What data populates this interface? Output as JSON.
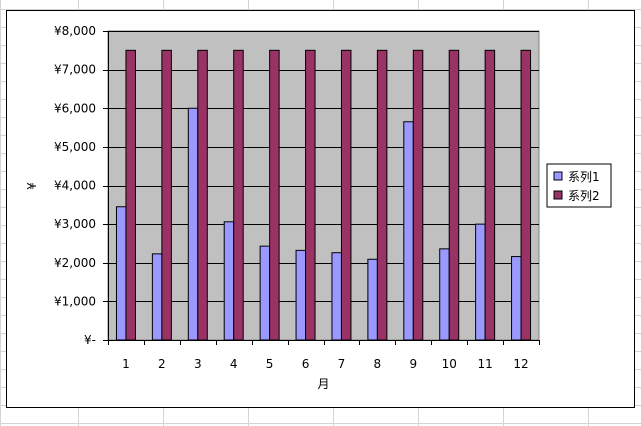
{
  "chart_data": {
    "type": "bar",
    "title": "",
    "xlabel": "月",
    "ylabel": "¥",
    "categories": [
      "1",
      "2",
      "3",
      "4",
      "5",
      "6",
      "7",
      "8",
      "9",
      "10",
      "11",
      "12"
    ],
    "series": [
      {
        "name": "系列1",
        "color": "#9999ff",
        "values": [
          3450,
          2230,
          6000,
          3060,
          2430,
          2320,
          2260,
          2090,
          5650,
          2360,
          3000,
          2160
        ]
      },
      {
        "name": "系列2",
        "color": "#993366",
        "values": [
          7500,
          7500,
          7500,
          7500,
          7500,
          7500,
          7500,
          7500,
          7500,
          7500,
          7500,
          7500
        ]
      }
    ],
    "ylim": [
      0,
      8000
    ],
    "yticks": [
      0,
      1000,
      2000,
      3000,
      4000,
      5000,
      6000,
      7000,
      8000
    ],
    "ytick_labels": [
      "¥-",
      "¥1,000",
      "¥2,000",
      "¥3,000",
      "¥4,000",
      "¥5,000",
      "¥6,000",
      "¥7,000",
      "¥8,000"
    ],
    "grid": true,
    "plot_background": "#c0c0c0",
    "legend_position": "right"
  }
}
